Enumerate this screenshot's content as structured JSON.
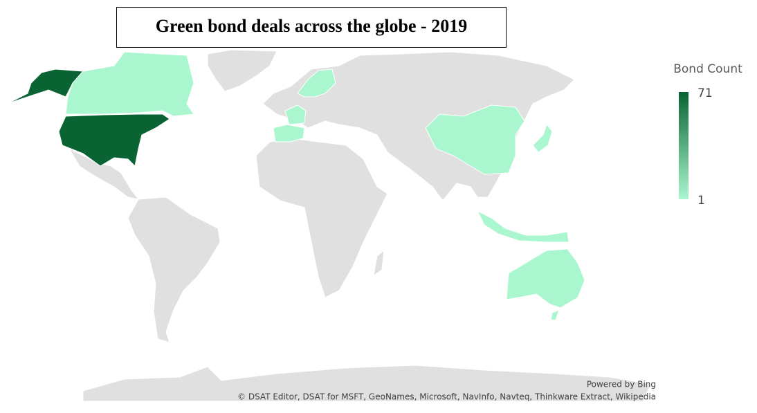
{
  "title": "Green bond deals across the globe - 2019",
  "legend": {
    "title": "Bond Count",
    "max": 71,
    "min": 1,
    "colors": [
      "#aaf7cf",
      "#0a6333"
    ]
  },
  "credits": {
    "powered": "Powered by Bing",
    "sources": "© DSAT Editor, DSAT for MSFT, GeoNames, Microsoft, NavInfo, Navteq, Thinkware Extract, Wikipedia"
  }
}
